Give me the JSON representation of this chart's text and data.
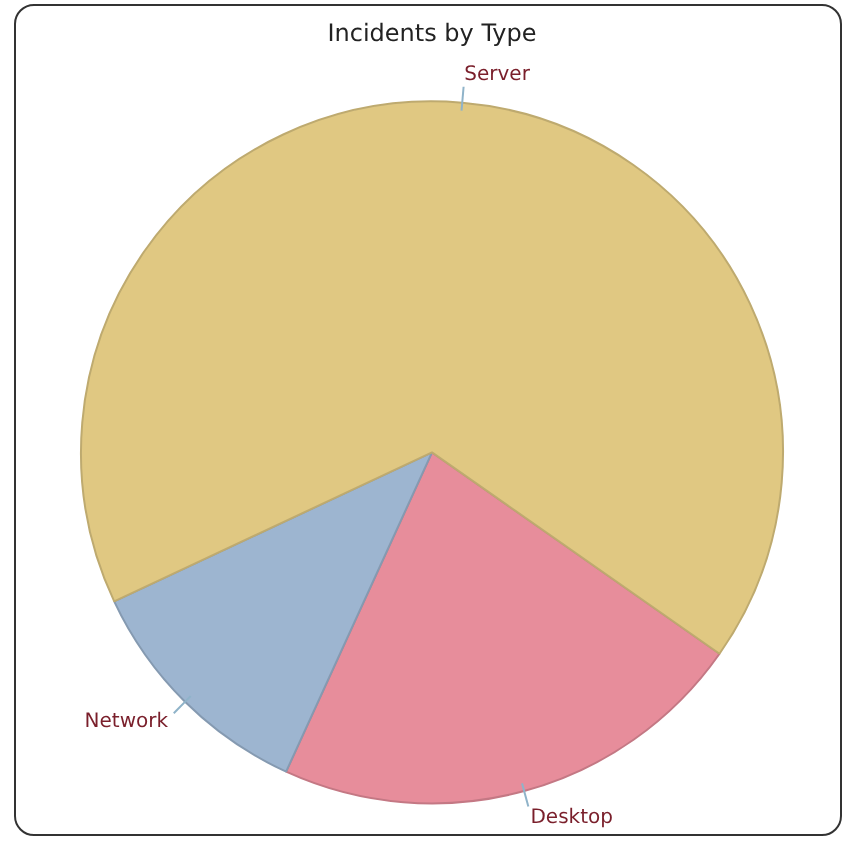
{
  "chart_data": {
    "type": "pie",
    "title": "Incidents by Type",
    "categories": [
      "Desktop",
      "Network",
      "Server"
    ],
    "values": [
      22.1,
      11.2,
      66.7
    ],
    "colors": [
      "#e78d9b",
      "#9db5d0",
      "#e0c882"
    ],
    "legend": false
  }
}
